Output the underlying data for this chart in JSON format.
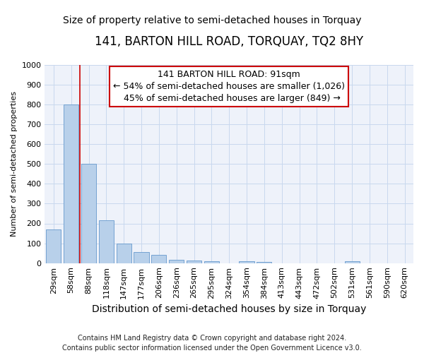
{
  "title": "141, BARTON HILL ROAD, TORQUAY, TQ2 8HY",
  "subtitle": "Size of property relative to semi-detached houses in Torquay",
  "xlabel": "Distribution of semi-detached houses by size in Torquay",
  "ylabel": "Number of semi-detached properties",
  "footnote": "Contains HM Land Registry data © Crown copyright and database right 2024.\nContains public sector information licensed under the Open Government Licence v3.0.",
  "categories": [
    "29sqm",
    "58sqm",
    "88sqm",
    "118sqm",
    "147sqm",
    "177sqm",
    "206sqm",
    "236sqm",
    "265sqm",
    "295sqm",
    "324sqm",
    "354sqm",
    "384sqm",
    "413sqm",
    "443sqm",
    "472sqm",
    "502sqm",
    "531sqm",
    "561sqm",
    "590sqm",
    "620sqm"
  ],
  "values": [
    170,
    800,
    500,
    215,
    100,
    55,
    40,
    18,
    12,
    10,
    0,
    8,
    7,
    0,
    0,
    0,
    0,
    8,
    0,
    0,
    0
  ],
  "bar_color": "#b8d0ea",
  "bar_edge_color": "#6699cc",
  "vline_position": 1.5,
  "vline_color": "#cc0000",
  "property_size": "91sqm",
  "pct_smaller": 54,
  "n_smaller": 1026,
  "pct_larger": 45,
  "n_larger": 849,
  "annotation_box_color": "#cc0000",
  "ylim": [
    0,
    1000
  ],
  "yticks": [
    0,
    100,
    200,
    300,
    400,
    500,
    600,
    700,
    800,
    900,
    1000
  ],
  "grid_color": "#c8d8ee",
  "bg_color": "#eef2fa",
  "title_fontsize": 12,
  "subtitle_fontsize": 10,
  "annotation_fontsize": 9,
  "ylabel_fontsize": 8,
  "xlabel_fontsize": 10,
  "tick_fontsize": 8,
  "footnote_fontsize": 7
}
